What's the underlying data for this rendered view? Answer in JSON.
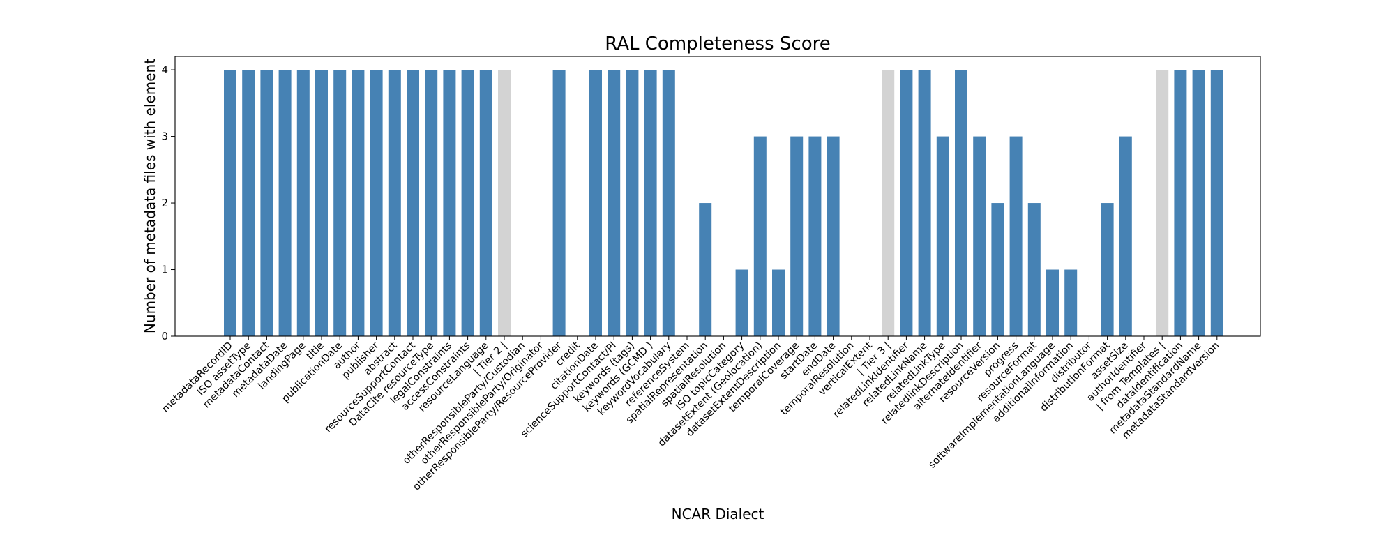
{
  "chart_data": {
    "type": "bar",
    "title": "RAL Completeness Score",
    "xlabel": "NCAR Dialect",
    "ylabel": "Number of metadata files with element",
    "ylim": [
      0,
      4.2
    ],
    "yticks": [
      0,
      1,
      2,
      3,
      4
    ],
    "grid": false,
    "colors": {
      "bar": "#4682b4",
      "separator": "#d3d3d3"
    },
    "categories": [
      "metadataRecordID",
      "ISO assetType",
      "metadataContact",
      "metadataDate",
      "landingPage",
      "title",
      "publicationDate",
      "author",
      "publisher",
      "abstract",
      "resourceSupportContact",
      "DataCite resourceType",
      "legalConstraints",
      "accessConstraints",
      "resourceLanguage",
      "| Tier 2 |",
      "otherResponsibleParty/Custodian",
      "otherResponsibleParty/Originator",
      "otherResponsibleParty/ResourceProvider",
      "credit",
      "citationDate",
      "scienceSupportContact/PI",
      "keywords (tags)",
      "keywords (GCMD )",
      "keywordVocabulary",
      "referenceSystem",
      "spatialRepresentation",
      "spatialResolution",
      "ISO topicCategory",
      "datasetExtent (Geolocation)",
      "datasetExtentDescription",
      "temporalCoverage",
      "startDate",
      "endDate",
      "temporalResolution",
      "verticalExtent",
      "| Tier 3 |",
      "relatedLinkIdentifier",
      "relatedLinkName",
      "relatedLinkType",
      "relatedlinkDescription",
      "alternateIdentifier",
      "resourceVersion",
      "progress",
      "resourceFormat",
      "softwareImplementationLanguage",
      "additionalInformation",
      "distributor",
      "distributionFormat",
      "assetSize",
      "authorIdentifier",
      "| from Templates |",
      "dataIdentification",
      "metadataStandardName",
      "metadataStandardVersion"
    ],
    "values": [
      4,
      4,
      4,
      4,
      4,
      4,
      4,
      4,
      4,
      4,
      4,
      4,
      4,
      4,
      4,
      4,
      0,
      0,
      4,
      0,
      4,
      4,
      4,
      4,
      4,
      0,
      2,
      0,
      1,
      3,
      1,
      3,
      3,
      3,
      0,
      0,
      4,
      4,
      4,
      3,
      4,
      3,
      2,
      3,
      2,
      1,
      1,
      0,
      2,
      3,
      0,
      4,
      4,
      4,
      4
    ],
    "separator_indices": [
      15,
      36,
      51
    ]
  }
}
